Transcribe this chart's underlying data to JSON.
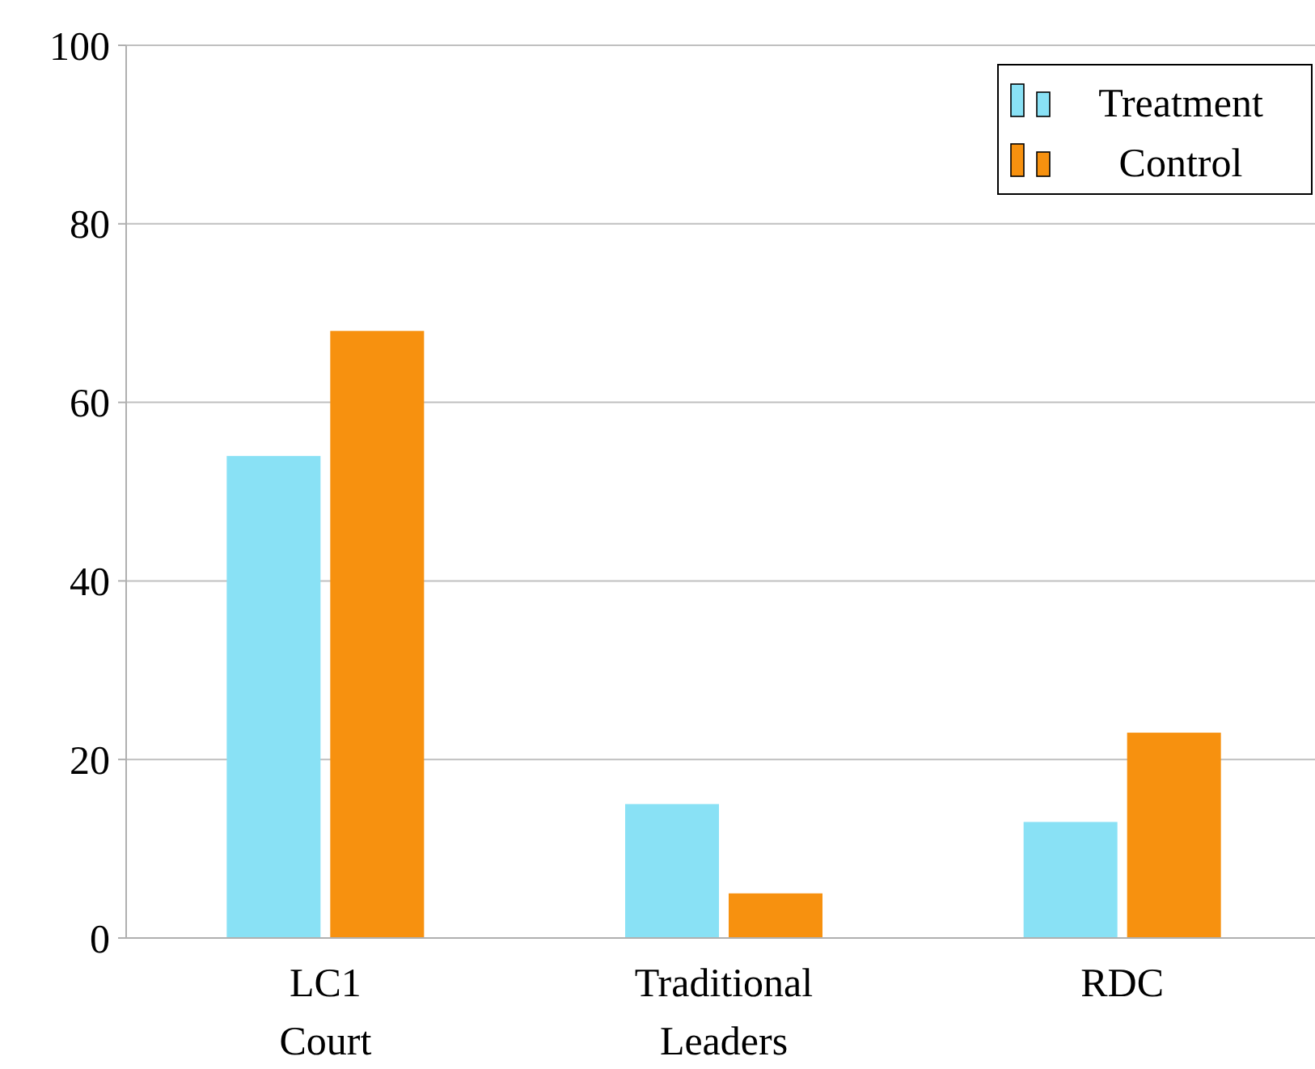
{
  "chart_data": {
    "type": "bar",
    "categories": [
      "LC1 Court",
      "Traditional Leaders",
      "RDC"
    ],
    "series": [
      {
        "name": "Treatment",
        "color": "#89e1f5",
        "values": [
          54,
          15,
          13
        ]
      },
      {
        "name": "Control",
        "color": "#f7910f",
        "values": [
          68,
          5,
          23
        ]
      }
    ],
    "ylim": [
      0,
      100
    ],
    "yticks": [
      0,
      20,
      40,
      60,
      80,
      100
    ],
    "grid": "y",
    "legend": "top right"
  }
}
